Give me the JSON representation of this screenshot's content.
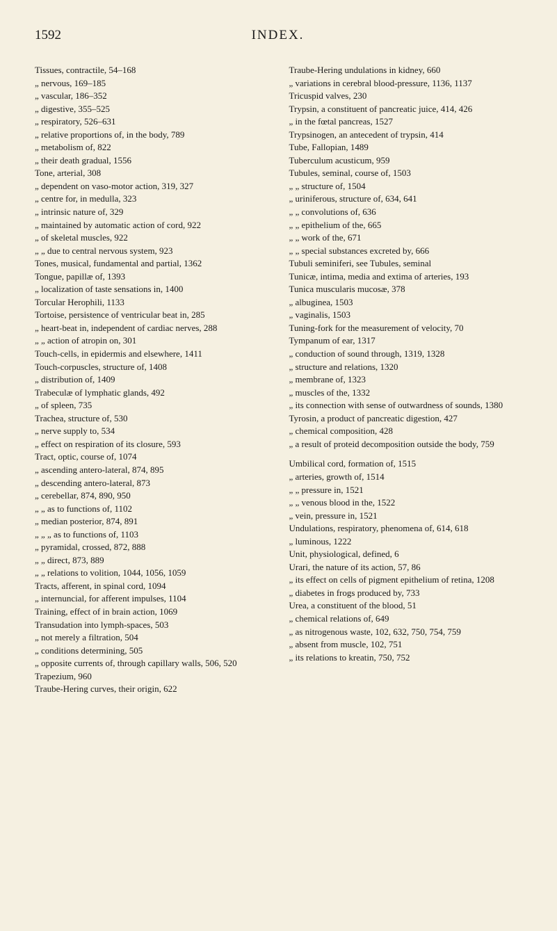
{
  "page": {
    "number": "1592",
    "title": "INDEX.",
    "background_color": "#f5f0e1",
    "text_color": "#1a1a1a",
    "font_family": "Times New Roman",
    "font_size_body": 13,
    "font_size_header": 19
  },
  "columns": {
    "left": [
      "Tissues, contractile, 54–168",
      "„     nervous, 169–185",
      "„     vascular, 186–352",
      "„     digestive, 355–525",
      "„     respiratory, 526–631",
      "„     relative proportions of, in the body, 789",
      "„     metabolism of, 822",
      "„     their death gradual, 1556",
      "Tone, arterial, 308",
      "„   dependent on vaso-motor action, 319, 327",
      "„   centre for, in medulla, 323",
      "„   intrinsic nature of, 329",
      "„   maintained by automatic action of cord, 922",
      "„   of skeletal muscles, 922",
      "„       „       due to central nervous system, 923",
      "Tones, musical, fundamental and partial, 1362",
      "Tongue, papillæ of, 1393",
      "„     localization of taste sensations in, 1400",
      "Torcular Herophili, 1133",
      "Tortoise, persistence of ventricular beat in, 285",
      "„     heart-beat in, independent of cardiac nerves, 288",
      "„       „     action of atropin on, 301",
      "Touch-cells, in epidermis and elsewhere, 1411",
      "Touch-corpuscles, structure of, 1408",
      "„           distribution of, 1409",
      "Trabeculæ of lymphatic glands, 492",
      "„       of spleen, 735",
      "Trachea, structure of, 530",
      "„     nerve supply to, 534",
      "„     effect on respiration of its closure, 593",
      "Tract, optic, course of, 1074",
      "„   ascending antero-lateral, 874, 895",
      "„   descending antero-lateral, 873",
      "„   cerebellar, 874, 890, 950",
      "„       „     as to functions of, 1102",
      "„   median posterior, 874, 891",
      "„       „       „     as to functions of, 1103",
      "„   pyramidal, crossed, 872, 888",
      "„       „     direct, 873, 889",
      "„       „     relations to volition, 1044, 1056, 1059",
      "Tracts, afferent, in spinal cord, 1094",
      "„   internuncial, for afferent impulses, 1104",
      "Training, effect of in brain action, 1069",
      "Transudation into lymph-spaces, 503",
      "„     not merely a filtration, 504",
      "„     conditions determining, 505",
      "„     opposite currents of, through capillary walls, 506, 520",
      "Trapezium, 960",
      "Traube-Hering curves, their origin, 622"
    ],
    "right": [
      "Traube-Hering undulations in kidney, 660",
      "„   variations in cerebral blood-pressure, 1136, 1137",
      "Tricuspid valves, 230",
      "Trypsin, a constituent of pancreatic juice, 414, 426",
      "„     in the fœtal pancreas, 1527",
      "Trypsinogen, an antecedent of trypsin, 414",
      "Tube, Fallopian, 1489",
      "Tuberculum acusticum, 959",
      "Tubules, seminal, course of, 1503",
      "„       „   structure of, 1504",
      "„     uriniferous, structure of, 634, 641",
      "„       „   convolutions of, 636",
      "„       „   epithelium of the, 665",
      "„       „   work of the, 671",
      "„       „   special substances excreted by, 666",
      "Tubuli seminiferi, see Tubules, seminal",
      "Tunicæ, intima, media and extima of arteries, 193",
      "Tunica muscularis mucosæ, 378",
      "„   albuginea, 1503",
      "„   vaginalis, 1503",
      "Tuning-fork for the measurement of velocity, 70",
      "Tympanum of ear, 1317",
      "„     conduction of sound through, 1319, 1328",
      "„     structure and relations, 1320",
      "„     membrane of, 1323",
      "„     muscles of the, 1332",
      "„     its connection with sense of outwardness of sounds, 1380",
      "Tyrosin, a product of pancreatic digestion, 427",
      "„   chemical composition, 428",
      "„   a result of proteid decomposition outside the body, 759",
      "",
      "Umbilical cord, formation of, 1515",
      "„   arteries, growth of, 1514",
      "„     „   pressure in, 1521",
      "„     „   venous blood in the, 1522",
      "„   vein, pressure in, 1521",
      "Undulations, respiratory, phenomena of, 614, 618",
      "„       luminous, 1222",
      "Unit, physiological, defined, 6",
      "Urari, the nature of its action, 57, 86",
      "„   its effect on cells of pigment epithelium of retina, 1208",
      "„   diabetes in frogs produced by, 733",
      "Urea, a constituent of the blood, 51",
      "„   chemical relations of, 649",
      "„   as nitrogenous waste, 102, 632, 750, 754, 759",
      "„   absent from muscle, 102, 751",
      "„   its relations to kreatin, 750, 752"
    ]
  },
  "footer_mark": ""
}
